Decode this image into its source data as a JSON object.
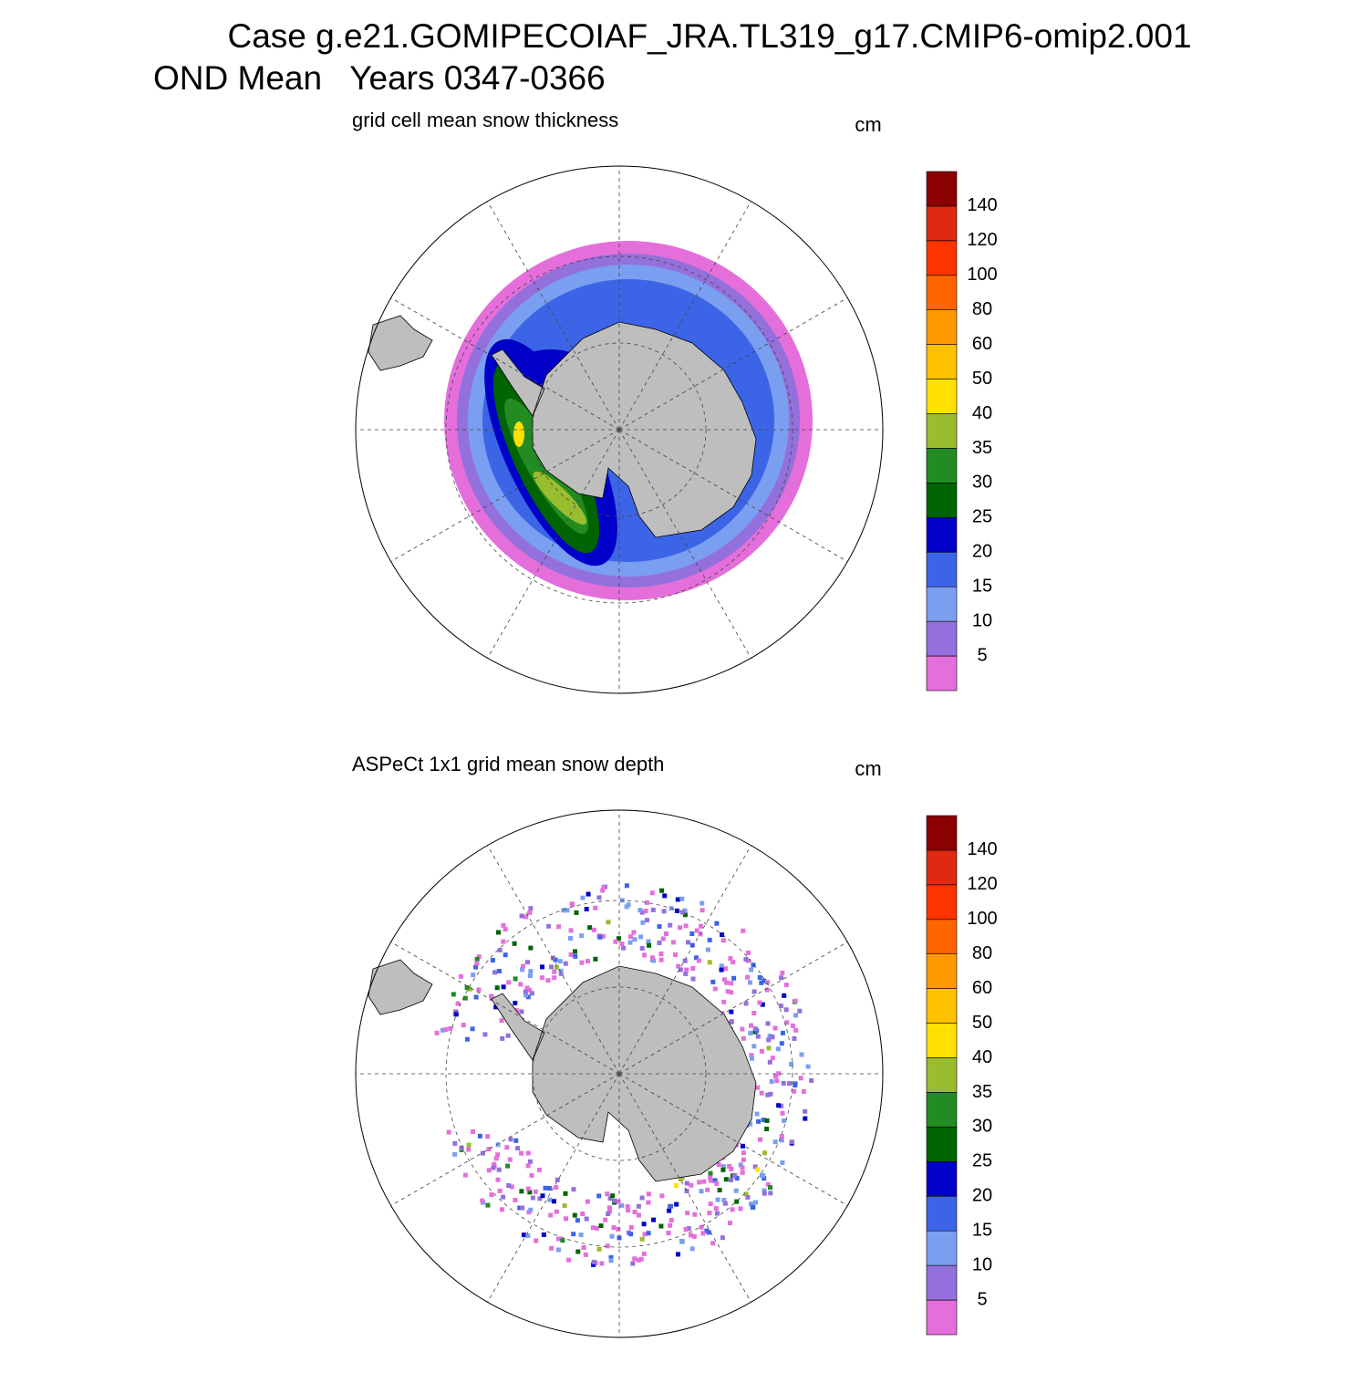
{
  "header": {
    "title": "Case g.e21.GOMIPECOIAF_JRA.TL319_g17.CMIP6-omip2.001",
    "subtitle": "OND Mean   Years 0347-0366"
  },
  "panels": [
    {
      "title": "grid cell mean snow thickness",
      "units": "cm"
    },
    {
      "title": "ASPeCt 1x1 grid mean snow depth",
      "units": "cm"
    }
  ],
  "colorbar": {
    "levels": [
      5,
      10,
      15,
      20,
      25,
      30,
      35,
      40,
      50,
      60,
      80,
      100,
      120,
      140
    ],
    "colors": [
      "#e46fdb",
      "#9370db",
      "#7b9ff0",
      "#3c64e6",
      "#0000c8",
      "#006400",
      "#228b22",
      "#9abd30",
      "#ffe000",
      "#ffc000",
      "#ff9900",
      "#ff6600",
      "#ff3300",
      "#dd2a10",
      "#8b0000"
    ]
  }
}
